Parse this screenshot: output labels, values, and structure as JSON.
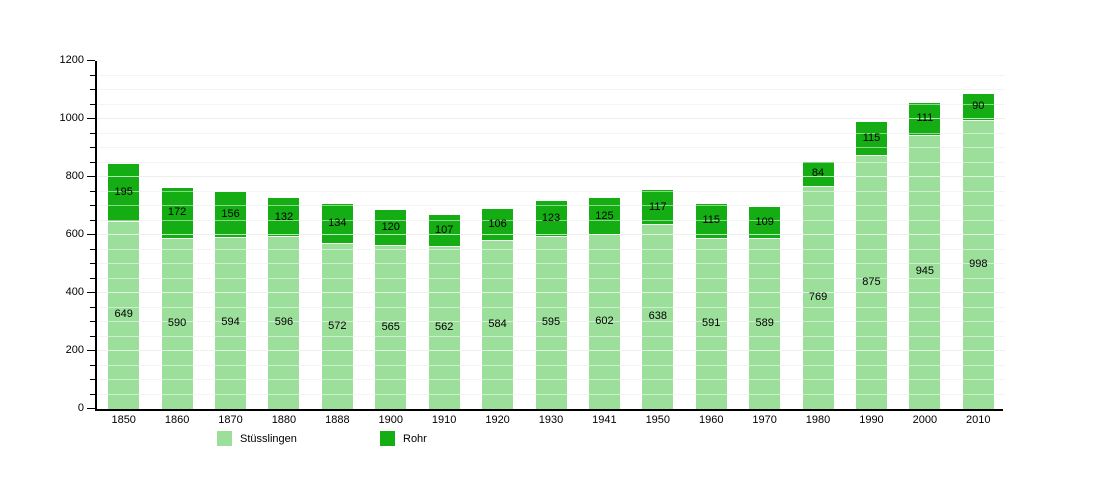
{
  "chart_data": {
    "type": "bar",
    "stacked": true,
    "title": "",
    "xlabel": "",
    "ylabel": "",
    "categories": [
      "1850",
      "1860",
      "1870",
      "1880",
      "1888",
      "1900",
      "1910",
      "1920",
      "1930",
      "1941",
      "1950",
      "1960",
      "1970",
      "1980",
      "1990",
      "2000",
      "2010"
    ],
    "series": [
      {
        "name": "Stüsslingen",
        "color": "#9BDF9B",
        "values": [
          649,
          590,
          594,
          596,
          572,
          565,
          562,
          584,
          595,
          602,
          638,
          591,
          589,
          769,
          875,
          945,
          998
        ]
      },
      {
        "name": "Rohr",
        "color": "#14AE14",
        "values": [
          195,
          172,
          156,
          132,
          134,
          120,
          107,
          106,
          123,
          125,
          117,
          115,
          109,
          84,
          115,
          111,
          90
        ]
      }
    ],
    "ylim": [
      0,
      1200
    ],
    "y_major_ticks": [
      0,
      200,
      400,
      600,
      800,
      1000,
      1200
    ],
    "y_minor_step": 50,
    "grid": true,
    "value_labels_shown": true,
    "legend_position": "bottom"
  },
  "colors": {
    "axis": "#000000",
    "minor_grid": "#e9e9e9",
    "major_grid": "#c6c6c6"
  }
}
